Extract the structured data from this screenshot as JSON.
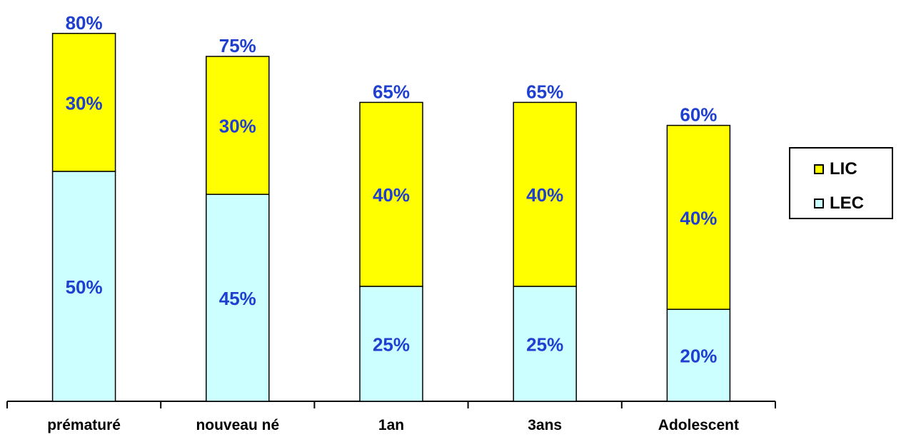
{
  "chart_data": {
    "type": "bar",
    "stacked": true,
    "categories": [
      "prématuré",
      "nouveau né",
      "1an",
      "3ans",
      "Adolescent"
    ],
    "series": [
      {
        "name": "LEC",
        "values": [
          50,
          45,
          25,
          25,
          20
        ],
        "color": "#CCFFFF"
      },
      {
        "name": "LIC",
        "values": [
          30,
          30,
          40,
          40,
          40
        ],
        "color": "#FFFF00"
      }
    ],
    "totals": [
      80,
      75,
      65,
      65,
      60
    ],
    "segment_labels": {
      "LEC": [
        "50%",
        "45%",
        "25%",
        "25%",
        "20%"
      ],
      "LIC": [
        "30%",
        "30%",
        "40%",
        "40%",
        "40%"
      ]
    },
    "total_labels": [
      "80%",
      "75%",
      "65%",
      "65%",
      "60%"
    ],
    "label_color": "#1F3FD0",
    "ylim": [
      0,
      85
    ],
    "y_axis_visible": false,
    "grid": false,
    "legend": {
      "position": "right",
      "order": [
        "LIC",
        "LEC"
      ]
    }
  }
}
